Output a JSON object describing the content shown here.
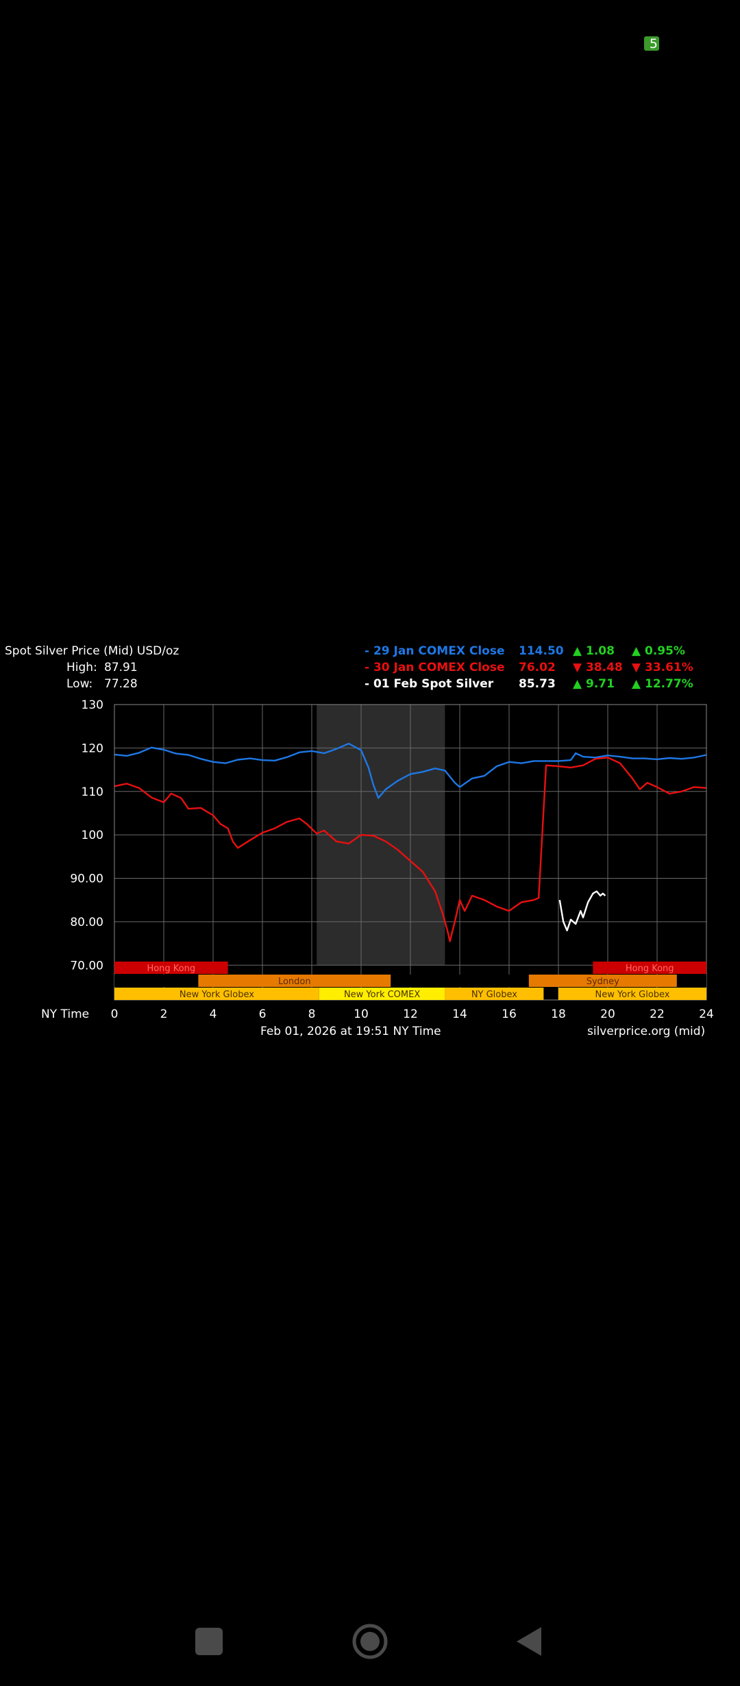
{
  "status": {
    "badge": "5"
  },
  "chart_data": {
    "type": "line",
    "title": "Spot Silver Price (Mid) USD/oz",
    "high_label": "High:",
    "high_value": "87.91",
    "low_label": "Low:",
    "low_value": "77.28",
    "xlabel": "NY Time",
    "footer_center": "Feb 01, 2026 at 19:51 NY Time",
    "footer_right": "silverprice.org (mid)",
    "xlim": [
      0,
      24
    ],
    "ylim": [
      62,
      130
    ],
    "x_ticks": [
      "0",
      "2",
      "4",
      "6",
      "8",
      "10",
      "12",
      "14",
      "16",
      "18",
      "20",
      "22",
      "24"
    ],
    "y_ticks": [
      {
        "v": 130,
        "label": "130"
      },
      {
        "v": 120,
        "label": "120"
      },
      {
        "v": 110,
        "label": "110"
      },
      {
        "v": 100,
        "label": "100"
      },
      {
        "v": 90,
        "label": "90.00"
      },
      {
        "v": 80,
        "label": "80.00"
      },
      {
        "v": 70,
        "label": "70.00"
      }
    ],
    "highlight_region": [
      8.2,
      13.4
    ],
    "legend": [
      {
        "label": "- 29 Jan COMEX Close",
        "price": "114.50",
        "change": "▲ 1.08",
        "pct": "▲ 0.95%",
        "color": "#1e78e6",
        "change_color": "#22d022"
      },
      {
        "label": "- 30 Jan COMEX Close",
        "price": "76.02",
        "change": "▼ 38.48",
        "pct": "▼ 33.61%",
        "color": "#e81010",
        "change_color": "#e81010"
      },
      {
        "label": "- 01 Feb Spot Silver",
        "price": "85.73",
        "change": "▲ 9.71",
        "pct": "▲ 12.77%",
        "color": "#ffffff",
        "change_color": "#22d022"
      }
    ],
    "series": [
      {
        "color": "#1e78e6",
        "points": [
          [
            0,
            118.5
          ],
          [
            0.5,
            118.2
          ],
          [
            1,
            118.9
          ],
          [
            1.5,
            120.1
          ],
          [
            2,
            119.6
          ],
          [
            2.5,
            118.7
          ],
          [
            3,
            118.4
          ],
          [
            3.5,
            117.5
          ],
          [
            4,
            116.8
          ],
          [
            4.5,
            116.5
          ],
          [
            5,
            117.3
          ],
          [
            5.5,
            117.6
          ],
          [
            6,
            117.2
          ],
          [
            6.5,
            117.1
          ],
          [
            7,
            117.9
          ],
          [
            7.5,
            119.0
          ],
          [
            8,
            119.3
          ],
          [
            8.5,
            118.8
          ],
          [
            9,
            119.8
          ],
          [
            9.5,
            121.0
          ],
          [
            10,
            119.5
          ],
          [
            10.3,
            115.5
          ],
          [
            10.5,
            111.5
          ],
          [
            10.7,
            108.5
          ],
          [
            11,
            110.5
          ],
          [
            11.5,
            112.5
          ],
          [
            12,
            114.0
          ],
          [
            12.5,
            114.5
          ],
          [
            13,
            115.3
          ],
          [
            13.4,
            114.8
          ],
          [
            13.8,
            112.0
          ],
          [
            14,
            111.0
          ],
          [
            14.5,
            113.0
          ],
          [
            15,
            113.6
          ],
          [
            15.5,
            115.8
          ],
          [
            16,
            116.8
          ],
          [
            16.5,
            116.5
          ],
          [
            17,
            117.0
          ],
          [
            17.5,
            117.0
          ],
          [
            18,
            117.0
          ],
          [
            18.5,
            117.2
          ],
          [
            18.7,
            118.8
          ],
          [
            19,
            118.0
          ],
          [
            19.5,
            117.8
          ],
          [
            20,
            118.3
          ],
          [
            20.5,
            118.0
          ],
          [
            21,
            117.6
          ],
          [
            21.5,
            117.6
          ],
          [
            22,
            117.4
          ],
          [
            22.5,
            117.7
          ],
          [
            23,
            117.5
          ],
          [
            23.5,
            117.8
          ],
          [
            24,
            118.4
          ]
        ]
      },
      {
        "color": "#e81010",
        "points": [
          [
            0,
            111.2
          ],
          [
            0.5,
            111.8
          ],
          [
            1,
            110.8
          ],
          [
            1.5,
            108.6
          ],
          [
            2,
            107.5
          ],
          [
            2.3,
            109.5
          ],
          [
            2.7,
            108.5
          ],
          [
            3,
            106.0
          ],
          [
            3.5,
            106.2
          ],
          [
            4,
            104.5
          ],
          [
            4.3,
            102.5
          ],
          [
            4.6,
            101.5
          ],
          [
            4.8,
            98.5
          ],
          [
            5,
            97.0
          ],
          [
            5.5,
            98.8
          ],
          [
            6,
            100.5
          ],
          [
            6.5,
            101.5
          ],
          [
            7,
            103.0
          ],
          [
            7.5,
            103.8
          ],
          [
            7.8,
            102.5
          ],
          [
            8.2,
            100.3
          ],
          [
            8.5,
            101.0
          ],
          [
            9,
            98.5
          ],
          [
            9.5,
            98.0
          ],
          [
            10,
            100.0
          ],
          [
            10.5,
            99.8
          ],
          [
            11,
            98.5
          ],
          [
            11.5,
            96.5
          ],
          [
            12,
            94.0
          ],
          [
            12.5,
            91.5
          ],
          [
            13,
            87.0
          ],
          [
            13.3,
            82.0
          ],
          [
            13.5,
            78.0
          ],
          [
            13.6,
            75.5
          ],
          [
            13.8,
            80.0
          ],
          [
            14,
            85.0
          ],
          [
            14.2,
            82.5
          ],
          [
            14.5,
            86.0
          ],
          [
            15,
            85.0
          ],
          [
            15.5,
            83.5
          ],
          [
            16,
            82.5
          ],
          [
            16.5,
            84.5
          ],
          [
            17,
            85.0
          ],
          [
            17.2,
            85.5
          ],
          [
            17.5,
            116.0
          ],
          [
            18,
            115.8
          ],
          [
            18.5,
            115.5
          ],
          [
            19,
            116.0
          ],
          [
            19.5,
            117.5
          ],
          [
            20,
            117.8
          ],
          [
            20.5,
            116.5
          ],
          [
            21,
            113.0
          ],
          [
            21.3,
            110.5
          ],
          [
            21.6,
            112.0
          ],
          [
            22,
            111.0
          ],
          [
            22.5,
            109.5
          ],
          [
            23,
            110.0
          ],
          [
            23.5,
            111.0
          ],
          [
            24,
            110.8
          ]
        ],
        "breaks_after_index": [
          60
        ]
      },
      {
        "color": "#ffffff",
        "points": [
          [
            18.05,
            85.0
          ],
          [
            18.2,
            80.0
          ],
          [
            18.35,
            78.0
          ],
          [
            18.5,
            80.5
          ],
          [
            18.7,
            79.5
          ],
          [
            18.9,
            82.5
          ],
          [
            19.0,
            81.0
          ],
          [
            19.2,
            84.5
          ],
          [
            19.4,
            86.5
          ],
          [
            19.55,
            87.0
          ],
          [
            19.7,
            86.0
          ],
          [
            19.8,
            86.5
          ],
          [
            19.9,
            86.0
          ]
        ]
      }
    ],
    "sessions": [
      {
        "row": 0,
        "start": 0,
        "end": 4.6,
        "label": "Hong Kong",
        "color": "#cc0000",
        "text_color": "#ff6a6a"
      },
      {
        "row": 0,
        "start": 19.4,
        "end": 24,
        "label": "Hong Kong",
        "color": "#cc0000",
        "text_color": "#ff6a6a"
      },
      {
        "row": 1,
        "start": 3.4,
        "end": 11.2,
        "label": "London",
        "color": "#e67a00",
        "text_color": "#5a2a00"
      },
      {
        "row": 1,
        "start": 16.8,
        "end": 22.8,
        "label": "Sydney",
        "color": "#e67a00",
        "text_color": "#5a2a00"
      },
      {
        "row": 2,
        "start": 0,
        "end": 8.3,
        "label": "New York Globex",
        "color": "#ffbf00",
        "text_color": "#4a3000"
      },
      {
        "row": 2,
        "start": 8.3,
        "end": 13.4,
        "label": "New York COMEX",
        "color": "#ffee00",
        "text_color": "#4a3000"
      },
      {
        "row": 2,
        "start": 13.4,
        "end": 17.4,
        "label": "NY Globex",
        "color": "#ffbf00",
        "text_color": "#4a3000"
      },
      {
        "row": 2,
        "start": 18.0,
        "end": 24,
        "label": "New York Globex",
        "color": "#ffbf00",
        "text_color": "#4a3000"
      }
    ]
  }
}
